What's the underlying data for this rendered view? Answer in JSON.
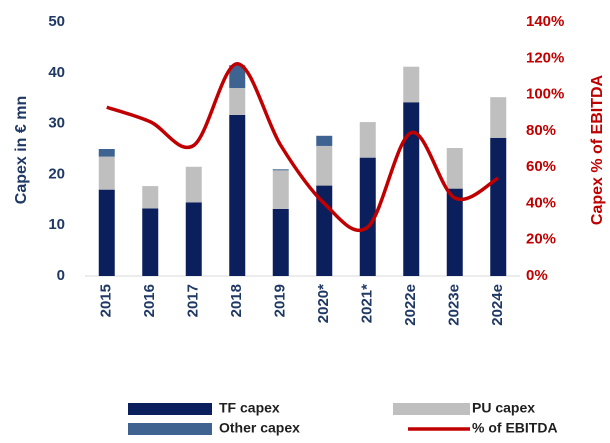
{
  "chart_data": {
    "type": "bar",
    "stacked": true,
    "categories": [
      "2015",
      "2016",
      "2017",
      "2018",
      "2019",
      "2020*",
      "2021*",
      "2022e",
      "2023e",
      "2024e"
    ],
    "series": [
      {
        "name": "TF capex",
        "color": "#0b1f5c",
        "values": [
          17,
          13.3,
          14.5,
          31.7,
          13.2,
          17.8,
          23.3,
          34.2,
          17.2,
          27.2
        ]
      },
      {
        "name": "PU capex",
        "color": "#bfbfbf",
        "values": [
          6.5,
          4.4,
          7,
          5.3,
          7.6,
          7.8,
          7,
          7,
          8,
          8
        ]
      },
      {
        "name": "Other capex",
        "color": "#3f6391",
        "values": [
          1.5,
          0,
          0,
          4.5,
          0.2,
          2,
          0,
          0,
          0,
          0
        ]
      },
      {
        "name": "% of EBITDA",
        "color": "#c00000",
        "type": "line",
        "axis": "y2",
        "values": [
          93,
          85,
          72,
          117,
          72,
          40,
          27,
          79,
          43,
          54
        ]
      }
    ],
    "ylabel": "Capex in € mn",
    "y2label": "Capex % of EBITDA",
    "ylim": [
      0,
      50
    ],
    "yticks": [
      0,
      10,
      20,
      30,
      40,
      50
    ],
    "y2lim": [
      0,
      140
    ],
    "y2ticks": [
      {
        "value": 0,
        "label": "0%"
      },
      {
        "value": 20,
        "label": "20%"
      },
      {
        "value": 40,
        "label": "40%"
      },
      {
        "value": 60,
        "label": "60%"
      },
      {
        "value": 80,
        "label": "80%"
      },
      {
        "value": 100,
        "label": "100%"
      },
      {
        "value": 120,
        "label": "120%"
      },
      {
        "value": 140,
        "label": "140%"
      }
    ],
    "grid": false
  }
}
